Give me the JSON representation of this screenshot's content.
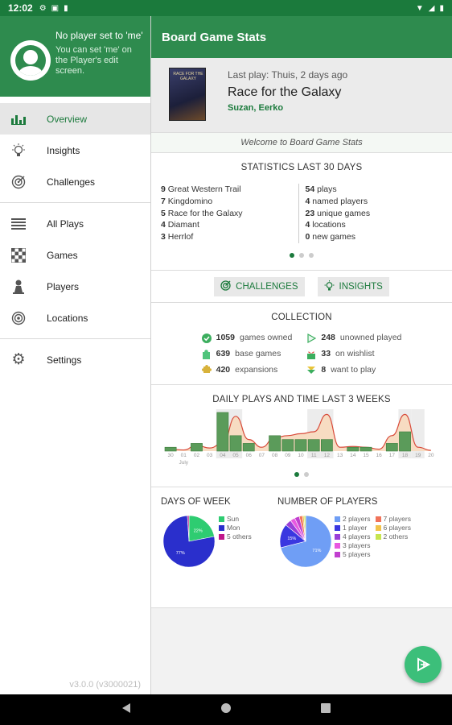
{
  "status_bar": {
    "time": "12:02"
  },
  "drawer": {
    "header_title": "No player set to 'me'",
    "header_sub": "You can set 'me' on the Player's edit screen.",
    "items": [
      {
        "label": "Overview",
        "icon": "bar-chart-icon"
      },
      {
        "label": "Insights",
        "icon": "lightbulb-icon"
      },
      {
        "label": "Challenges",
        "icon": "target-icon"
      },
      {
        "label": "All Plays",
        "icon": "list-icon"
      },
      {
        "label": "Games",
        "icon": "checkerboard-icon"
      },
      {
        "label": "Players",
        "icon": "pawn-icon"
      },
      {
        "label": "Locations",
        "icon": "target-icon"
      },
      {
        "label": "Settings",
        "icon": "gear-icon"
      }
    ],
    "version": "v3.0.0 (v3000021)"
  },
  "app_bar": {
    "title": "Board Game Stats"
  },
  "last_play": {
    "meta": "Last play: Thuis, 2 days ago",
    "game": "Race for the Galaxy",
    "player1": "Suzan",
    "sep": ", ",
    "player2": "Eerko",
    "cover_text": "RACE FOR THE GALAXY"
  },
  "welcome": "Welcome to Board Game Stats",
  "stats": {
    "title": "STATISTICS LAST 30 DAYS",
    "left": [
      {
        "n": "9",
        "t": "Great Western Trail"
      },
      {
        "n": "7",
        "t": "Kingdomino"
      },
      {
        "n": "5",
        "t": "Race for the Galaxy"
      },
      {
        "n": "4",
        "t": "Diamant"
      },
      {
        "n": "3",
        "t": "Herrlof"
      }
    ],
    "right": [
      {
        "n": "54",
        "t": "plays"
      },
      {
        "n": "4",
        "t": "named players"
      },
      {
        "n": "23",
        "t": "unique games"
      },
      {
        "n": "4",
        "t": "locations"
      },
      {
        "n": "0",
        "t": "new games"
      }
    ]
  },
  "buttons": {
    "challenges": "CHALLENGES",
    "insights": "INSIGHTS"
  },
  "collection": {
    "title": "COLLECTION",
    "left": [
      {
        "n": "1059",
        "t": "games owned"
      },
      {
        "n": "639",
        "t": "base games"
      },
      {
        "n": "420",
        "t": "expansions"
      }
    ],
    "right": [
      {
        "n": "248",
        "t": "unowned played"
      },
      {
        "n": "33",
        "t": "on wishlist"
      },
      {
        "n": "8",
        "t": "want to play"
      }
    ]
  },
  "daily": {
    "title": "DAILY PLAYS AND TIME LAST 3 WEEKS",
    "month_label": "July"
  },
  "chart_data": [
    {
      "type": "bar",
      "title": "DAILY PLAYS AND TIME LAST 3 WEEKS",
      "categories": [
        "30",
        "01",
        "02",
        "03",
        "04",
        "05",
        "06",
        "07",
        "08",
        "09",
        "10",
        "11",
        "12",
        "13",
        "14",
        "15",
        "16",
        "17",
        "18",
        "19",
        "20"
      ],
      "series": [
        {
          "values": [
            1,
            0,
            2,
            0,
            10,
            4,
            2,
            0,
            4,
            3,
            3,
            3,
            3,
            0,
            1,
            1,
            0,
            2,
            5,
            0,
            0
          ]
        }
      ],
      "time_curve": [
        0.5,
        0.3,
        1.5,
        0.8,
        2,
        9,
        3,
        1,
        3.5,
        4,
        4.5,
        5,
        9.5,
        1,
        1.2,
        1,
        0.5,
        4,
        9.5,
        1,
        0.2
      ],
      "shaded_weekends": [
        "04",
        "05",
        "11",
        "12",
        "18",
        "19"
      ]
    },
    {
      "type": "pie",
      "title": "DAYS OF WEEK",
      "categories": [
        "Sun",
        "Mon",
        "5 others"
      ],
      "values": [
        22,
        77,
        1
      ],
      "colors": [
        "#2ecc71",
        "#2a2fcc",
        "#c0188b"
      ],
      "slice_labels": [
        "22%",
        "77%",
        ""
      ]
    },
    {
      "type": "pie",
      "title": "NUMBER OF PLAYERS",
      "categories": [
        "2 players",
        "1 player",
        "4 players",
        "3 players",
        "5 players",
        "7 players",
        "6 players",
        "2 others"
      ],
      "values": [
        71,
        15,
        4,
        3,
        3,
        2,
        1,
        1
      ],
      "colors": [
        "#6f9ef5",
        "#3a37e0",
        "#9a3fd8",
        "#e858e0",
        "#c13fcf",
        "#f0735a",
        "#f2c34a",
        "#c7e54f"
      ],
      "slice_labels": [
        "71%",
        "15%",
        "",
        "",
        "",
        "",
        "",
        ""
      ]
    }
  ]
}
